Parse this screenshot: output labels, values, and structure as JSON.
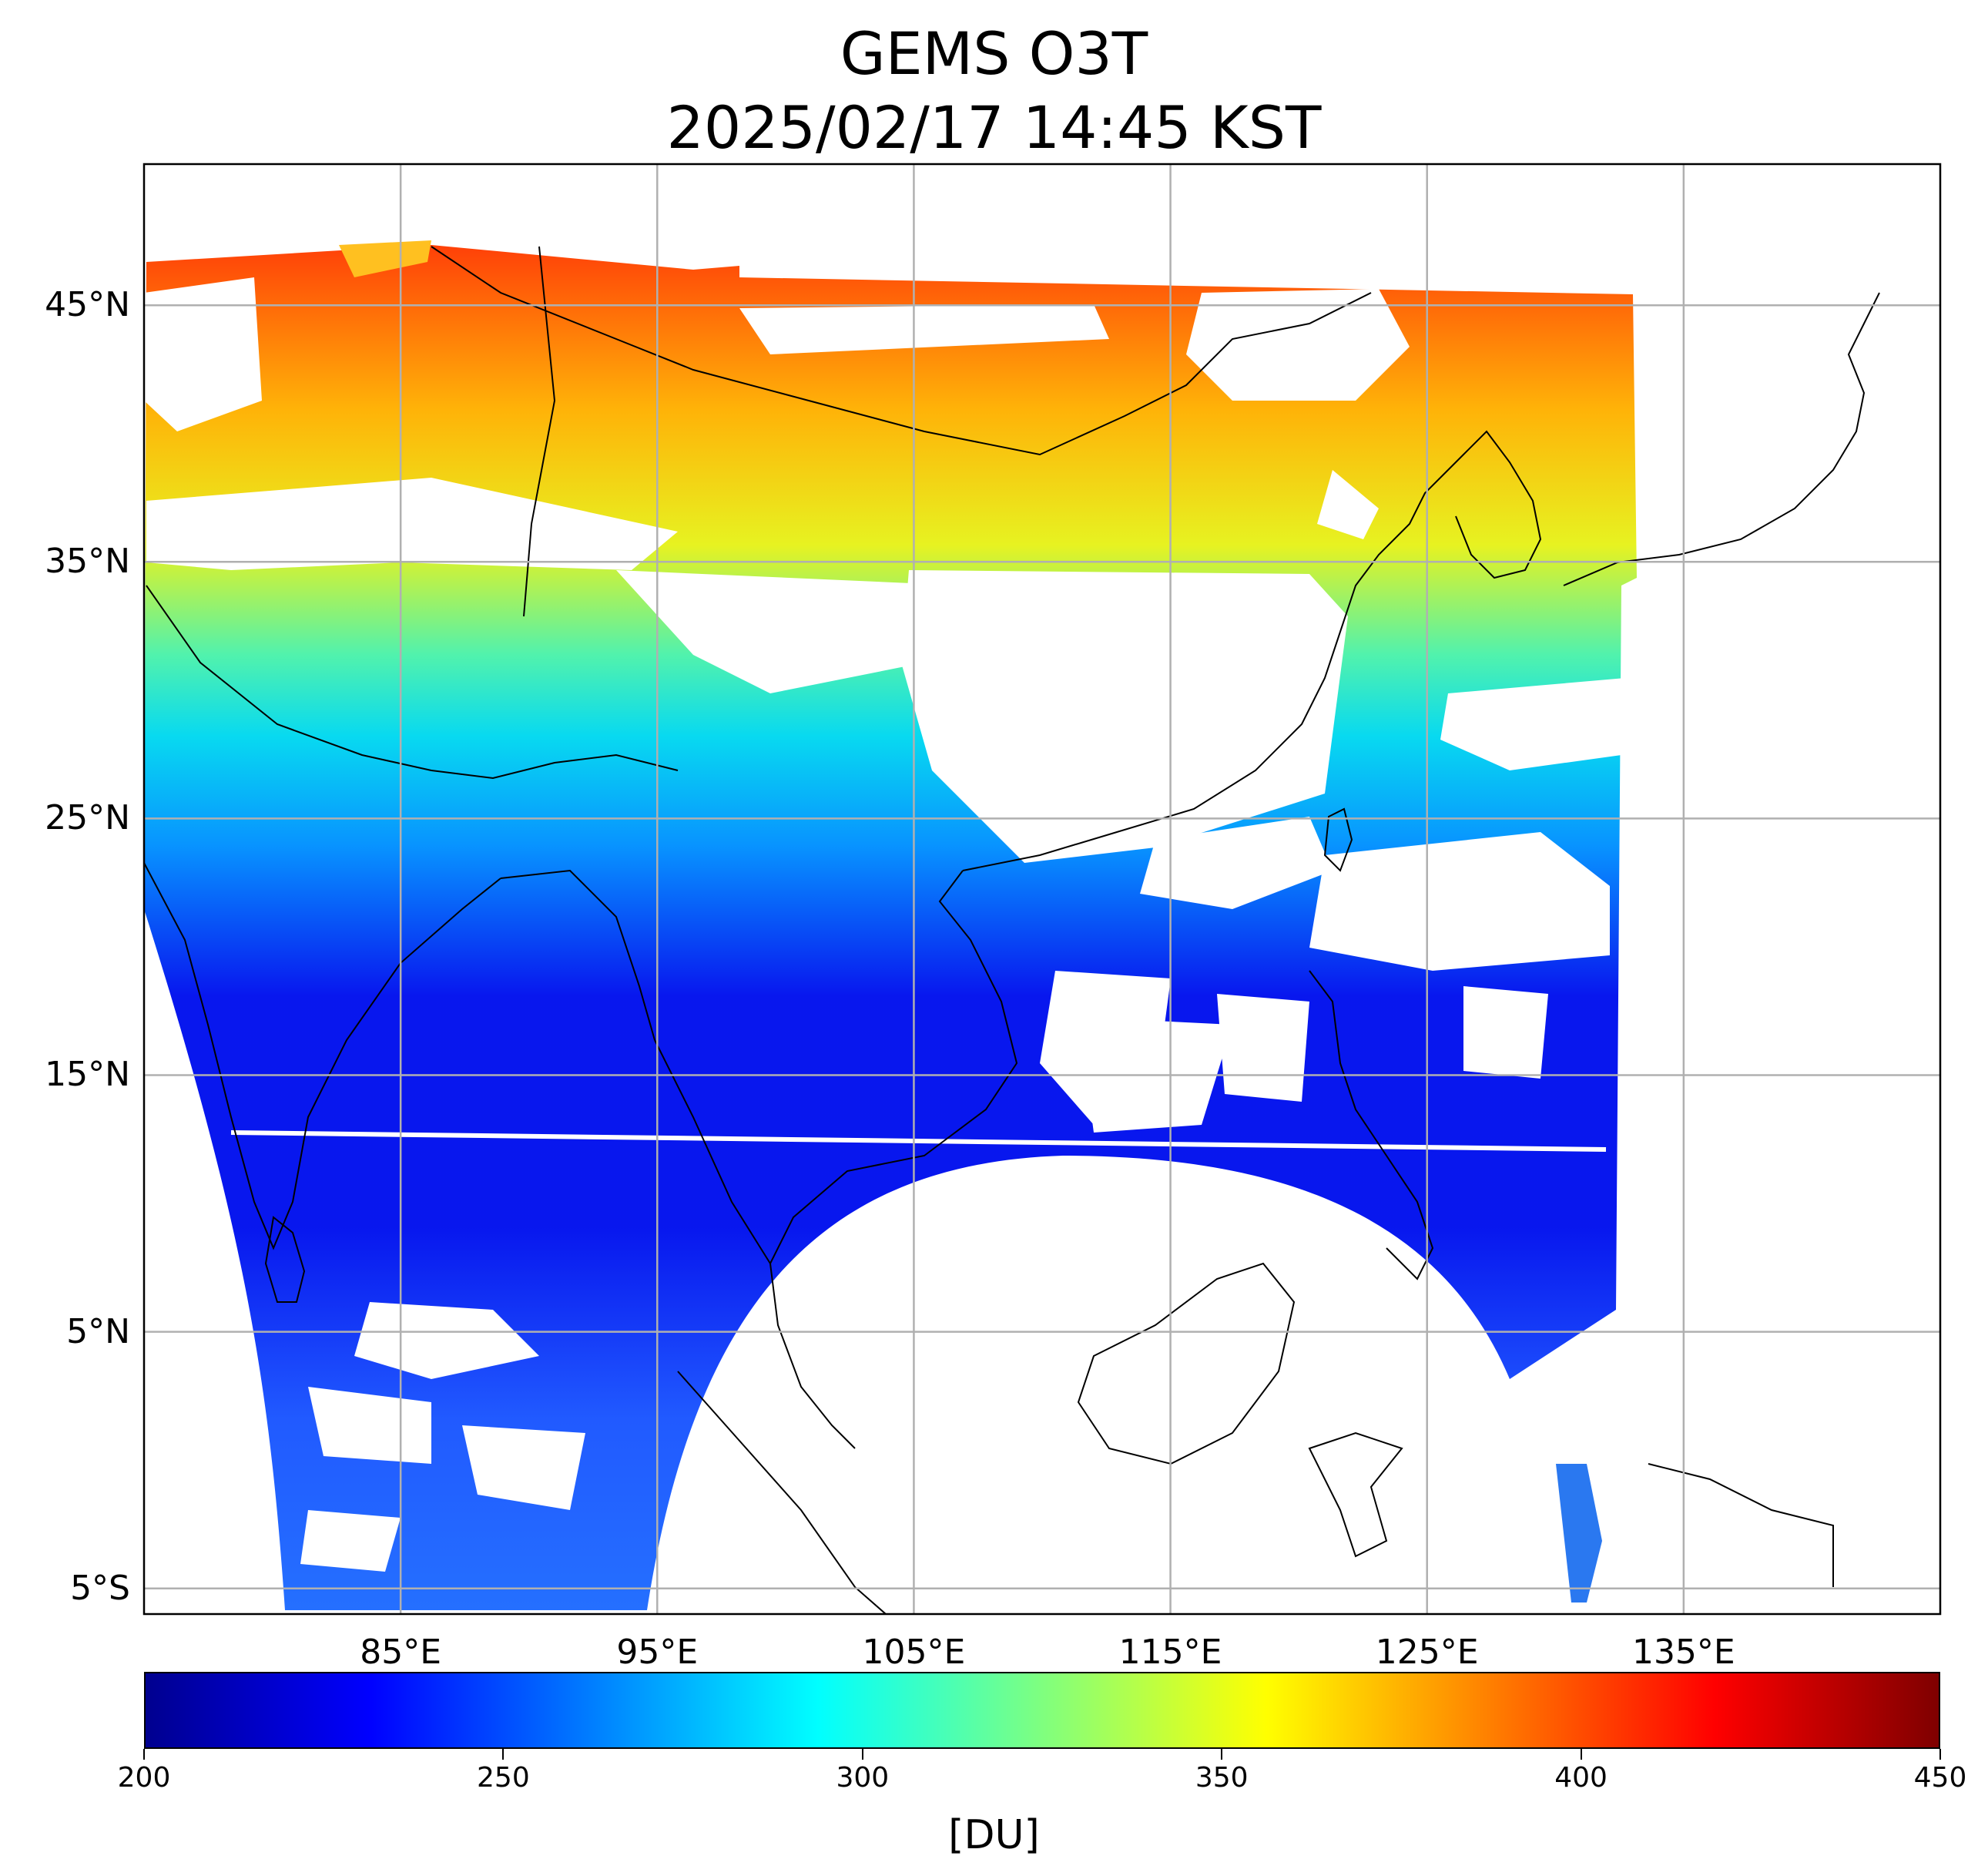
{
  "title": {
    "line1": "GEMS O3T",
    "line2": "2025/02/17 14:45 KST"
  },
  "map": {
    "extent": {
      "lon_min": 75,
      "lon_max": 145,
      "lat_min": -6,
      "lat_max": 50.5
    },
    "lat_ticks": [
      {
        "value": 45,
        "label": "45°N"
      },
      {
        "value": 35,
        "label": "35°N"
      },
      {
        "value": 25,
        "label": "25°N"
      },
      {
        "value": 15,
        "label": "15°N"
      },
      {
        "value": 5,
        "label": "5°N"
      },
      {
        "value": -5,
        "label": "5°S"
      }
    ],
    "lon_ticks": [
      {
        "value": 85,
        "label": "85°E"
      },
      {
        "value": 95,
        "label": "95°E"
      },
      {
        "value": 105,
        "label": "105°E"
      },
      {
        "value": 115,
        "label": "115°E"
      },
      {
        "value": 125,
        "label": "125°E"
      },
      {
        "value": 135,
        "label": "135°E"
      }
    ],
    "gridlines": true,
    "gridline_color": "#b0b0b0"
  },
  "colorbar": {
    "colormap": "jet",
    "min": 200,
    "max": 450,
    "ticks": [
      "200",
      "250",
      "300",
      "350",
      "400",
      "450"
    ],
    "tick_values": [
      200,
      250,
      300,
      350,
      400,
      450
    ],
    "unit": "[DU]"
  }
}
